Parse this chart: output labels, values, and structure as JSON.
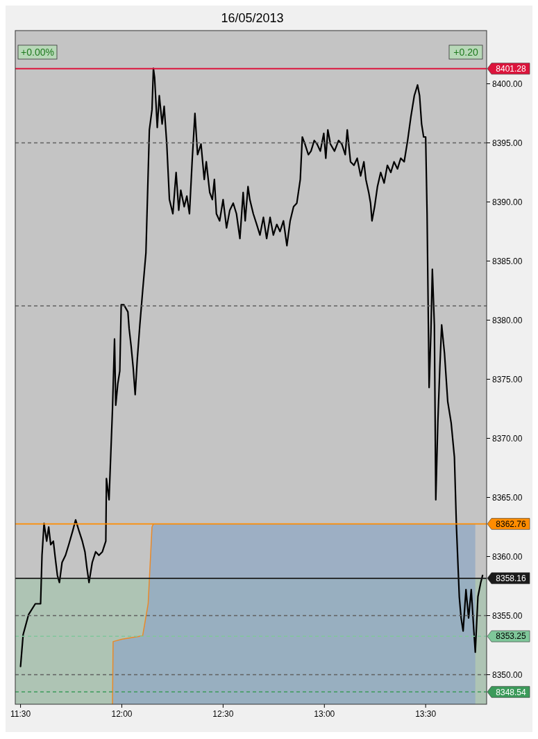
{
  "chart_data": {
    "type": "line",
    "title": "16/05/2013",
    "xlim": [
      11.474,
      13.801
    ],
    "xticks": [
      {
        "value": 11.5,
        "label": "11:30"
      },
      {
        "value": 12,
        "label": "12:00"
      },
      {
        "value": 12.5,
        "label": "12:30"
      },
      {
        "value": 13,
        "label": "13:00"
      },
      {
        "value": 13.5,
        "label": "13:30"
      }
    ],
    "ylim": [
      8347.5,
      8404.5
    ],
    "yticks": [
      {
        "value": 8350,
        "label": "8350.00"
      },
      {
        "value": 8355,
        "label": "8355.00"
      },
      {
        "value": 8360,
        "label": "8360.00"
      },
      {
        "value": 8365,
        "label": "8365.00"
      },
      {
        "value": 8370,
        "label": "8370.00"
      },
      {
        "value": 8375,
        "label": "8375.00"
      },
      {
        "value": 8380,
        "label": "8380.00"
      },
      {
        "value": 8385,
        "label": "8385.00"
      },
      {
        "value": 8390,
        "label": "8390.00"
      },
      {
        "value": 8395,
        "label": "8395.00"
      },
      {
        "value": 8400,
        "label": "8400.00"
      }
    ],
    "bands": [
      {
        "axis": "y",
        "from": 8347.5,
        "to": 8358.16,
        "color": "#a9c4b0"
      }
    ],
    "series": [
      {
        "type": "area",
        "color": "#90a8c4",
        "x": [
          11.954,
          11.957,
          12.0,
          12.103,
          12.13,
          12.149,
          12.156,
          13.745
        ],
        "values": [
          8347.5,
          8352.8,
          8353.0,
          8353.3,
          8356.0,
          8362.5,
          8362.76,
          8362.76
        ]
      },
      {
        "color": "#e8892a",
        "x": [
          11.954,
          11.957,
          12.0,
          12.103,
          12.13,
          12.149,
          12.156
        ],
        "values": [
          8347.5,
          8352.8,
          8353.0,
          8353.3,
          8356.0,
          8362.5,
          8362.76
        ]
      },
      {
        "color": "#000000",
        "x": [
          11.5,
          11.513,
          11.54,
          11.573,
          11.599,
          11.606,
          11.616,
          11.629,
          11.639,
          11.649,
          11.662,
          11.672,
          11.682,
          11.692,
          11.705,
          11.722,
          11.738,
          11.758,
          11.772,
          11.788,
          11.805,
          11.818,
          11.828,
          11.838,
          11.854,
          11.871,
          11.887,
          11.904,
          11.921,
          11.924,
          11.937,
          11.954,
          11.964,
          11.97,
          11.98,
          11.99,
          11.997,
          12.01,
          12.03,
          12.036,
          12.046,
          12.056,
          12.066,
          12.076,
          12.089,
          12.103,
          12.119,
          12.136,
          12.149,
          12.156,
          12.162,
          12.175,
          12.185,
          12.199,
          12.209,
          12.222,
          12.235,
          12.252,
          12.268,
          12.281,
          12.291,
          12.308,
          12.321,
          12.334,
          12.348,
          12.361,
          12.374,
          12.391,
          12.407,
          12.417,
          12.434,
          12.447,
          12.457,
          12.467,
          12.483,
          12.5,
          12.517,
          12.533,
          12.55,
          12.566,
          12.583,
          12.599,
          12.609,
          12.623,
          12.632,
          12.649,
          12.666,
          12.682,
          12.699,
          12.715,
          12.732,
          12.748,
          12.765,
          12.781,
          12.798,
          12.815,
          12.831,
          12.848,
          12.864,
          12.881,
          12.891,
          12.904,
          12.921,
          12.934,
          12.95,
          12.964,
          12.98,
          12.997,
          13.007,
          13.017,
          13.03,
          13.05,
          13.07,
          13.086,
          13.103,
          13.113,
          13.129,
          13.146,
          13.162,
          13.179,
          13.195,
          13.205,
          13.219,
          13.228,
          13.235,
          13.248,
          13.262,
          13.278,
          13.295,
          13.311,
          13.328,
          13.344,
          13.361,
          13.377,
          13.394,
          13.411,
          13.427,
          13.444,
          13.46,
          13.47,
          13.48,
          13.49,
          13.5,
          13.507,
          13.517,
          13.526,
          13.533,
          13.543,
          13.55,
          13.56,
          13.57,
          13.579,
          13.593,
          13.609,
          13.626,
          13.642,
          13.652,
          13.666,
          13.675,
          13.685,
          13.699,
          13.712,
          13.725,
          13.738,
          13.745,
          13.758,
          13.772,
          13.781
        ],
        "values": [
          8350.7,
          8353.4,
          8355.1,
          8356.0,
          8356.0,
          8360.1,
          8362.8,
          8361.3,
          8362.5,
          8361.0,
          8361.3,
          8359.8,
          8358.4,
          8357.8,
          8359.5,
          8360.1,
          8361.0,
          8362.2,
          8363.1,
          8362.2,
          8361.3,
          8360.4,
          8359.0,
          8357.8,
          8359.5,
          8360.4,
          8360.1,
          8360.4,
          8361.3,
          8366.6,
          8364.8,
          8372.5,
          8378.4,
          8372.8,
          8374.6,
          8375.7,
          8381.3,
          8381.3,
          8380.7,
          8379.3,
          8377.8,
          8376.0,
          8373.7,
          8376.6,
          8379.6,
          8382.5,
          8385.7,
          8396.1,
          8397.8,
          8401.3,
          8400.5,
          8396.3,
          8399.0,
          8396.6,
          8398.1,
          8394.9,
          8390.2,
          8389.0,
          8392.5,
          8389.3,
          8391.0,
          8389.6,
          8390.5,
          8389.0,
          8393.7,
          8397.5,
          8394.0,
          8394.9,
          8391.9,
          8393.4,
          8390.8,
          8390.2,
          8391.9,
          8389.0,
          8388.4,
          8390.2,
          8387.8,
          8389.3,
          8389.9,
          8389.0,
          8386.9,
          8390.8,
          8388.4,
          8391.3,
          8390.2,
          8389.0,
          8388.1,
          8387.2,
          8388.7,
          8386.9,
          8388.7,
          8387.2,
          8388.1,
          8387.5,
          8388.4,
          8386.3,
          8388.4,
          8389.6,
          8389.9,
          8391.9,
          8395.5,
          8394.9,
          8394.0,
          8394.3,
          8395.2,
          8394.9,
          8394.3,
          8395.8,
          8393.7,
          8396.1,
          8394.9,
          8394.3,
          8395.2,
          8394.9,
          8394.0,
          8396.1,
          8393.4,
          8393.1,
          8393.7,
          8392.2,
          8393.4,
          8391.9,
          8390.8,
          8389.9,
          8388.4,
          8389.6,
          8391.3,
          8392.5,
          8391.6,
          8393.1,
          8392.5,
          8393.4,
          8392.8,
          8393.7,
          8393.4,
          8395.2,
          8397.2,
          8399.0,
          8399.9,
          8399.0,
          8396.6,
          8395.5,
          8395.5,
          8389.0,
          8374.3,
          8379.0,
          8384.3,
          8379.6,
          8364.8,
          8371.3,
          8376.0,
          8379.6,
          8377.2,
          8373.1,
          8371.3,
          8368.4,
          8362.5,
          8356.6,
          8354.8,
          8353.7,
          8357.2,
          8354.8,
          8357.2,
          8353.7,
          8351.9,
          8356.6,
          8357.8,
          8358.4
        ]
      }
    ],
    "ref_lines": [
      {
        "axis": "y",
        "value": 8401.28,
        "label": "8401.28",
        "color": "#dc143c",
        "line_style": "solid"
      },
      {
        "axis": "y",
        "value": 8362.76,
        "label": "8362.76",
        "color": "#ff8c00",
        "line_style": "solid"
      },
      {
        "axis": "y",
        "value": 8358.16,
        "label": "8358.16",
        "color": "#1a1a1a",
        "line_style": "solid"
      },
      {
        "axis": "y",
        "value": 8353.25,
        "label": "8353.25",
        "color": "#7fc79a",
        "line_style": "dashed"
      },
      {
        "axis": "y",
        "value": 8348.54,
        "label": "8348.54",
        "color": "#3c9a5a",
        "line_style": "dashed"
      },
      {
        "axis": "y",
        "value": 8395,
        "color": "#606060",
        "line_style": "dashed"
      },
      {
        "axis": "y",
        "value": 8381.2,
        "color": "#606060",
        "line_style": "dashed"
      },
      {
        "axis": "y",
        "value": 8355,
        "color": "#606060",
        "line_style": "dashed"
      },
      {
        "axis": "y",
        "value": 8350,
        "color": "#606060",
        "line_style": "dashed"
      }
    ],
    "annotations": [
      "+0.00%",
      "+0.20"
    ]
  }
}
